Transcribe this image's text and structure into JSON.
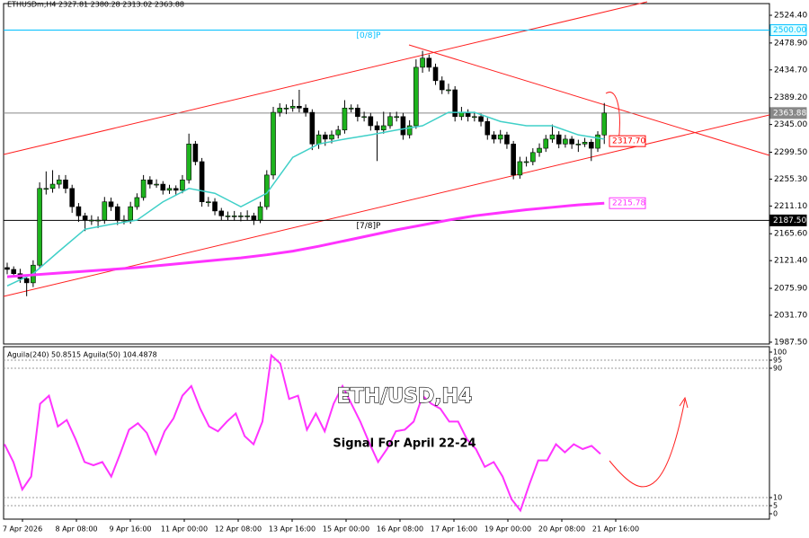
{
  "chart_data": [
    {
      "type": "candlestick",
      "title": "ETHUSDm,H4  2327.81 2380.28 2313.02 2363.88",
      "annotations": [
        "ETH/USD,H4",
        "Signal For April 22-24"
      ],
      "up_color": "#1db31d",
      "down_color": "#000000",
      "ylim": [
        1984.5,
        2543.6
      ],
      "yticks": [
        {
          "value": 2524.4,
          "label": "2524.40"
        },
        {
          "value": 2478.9,
          "label": "2478.90"
        },
        {
          "value": 2434.7,
          "label": "2434.70"
        },
        {
          "value": 2389.2,
          "label": "2389.20"
        },
        {
          "value": 2345,
          "label": "2345.00"
        },
        {
          "value": 2299.5,
          "label": "2299.50"
        },
        {
          "value": 2255.3,
          "label": "2255.30"
        },
        {
          "value": 2211.1,
          "label": "2211.10"
        },
        {
          "value": 2165.6,
          "label": "2165.60"
        },
        {
          "value": 2121.4,
          "label": "2121.40"
        },
        {
          "value": 2075.9,
          "label": "2075.90"
        },
        {
          "value": 2031.7,
          "label": "2031.70"
        },
        {
          "value": 1987.5,
          "label": "1987.50"
        }
      ],
      "x_labels": [
        "7 Apr 2026",
        "8 Apr 08:00",
        "9 Apr 16:00",
        "11 Apr 00:00",
        "12 Apr 08:00",
        "13 Apr 16:00",
        "15 Apr 00:00",
        "16 Apr 08:00",
        "17 Apr 16:00",
        "19 Apr 00:00",
        "20 Apr 08:00",
        "21 Apr 16:00"
      ],
      "candles": [
        [
          2110,
          2118,
          2099,
          2107
        ],
        [
          2107,
          2112,
          2094,
          2100
        ],
        [
          2100,
          2108,
          2085,
          2092
        ],
        [
          2092,
          2098,
          2063,
          2085
        ],
        [
          2085,
          2122,
          2078,
          2114
        ],
        [
          2114,
          2250,
          2108,
          2240
        ],
        [
          2240,
          2268,
          2230,
          2240
        ],
        [
          2240,
          2270,
          2233,
          2247
        ],
        [
          2247,
          2262,
          2240,
          2254
        ],
        [
          2254,
          2262,
          2232,
          2240
        ],
        [
          2240,
          2246,
          2200,
          2210
        ],
        [
          2210,
          2216,
          2185,
          2195
        ],
        [
          2195,
          2200,
          2170,
          2188
        ],
        [
          2188,
          2196,
          2180,
          2188
        ],
        [
          2188,
          2194,
          2175,
          2188
        ],
        [
          2188,
          2226,
          2182,
          2218
        ],
        [
          2218,
          2225,
          2203,
          2210
        ],
        [
          2210,
          2215,
          2180,
          2188
        ],
        [
          2188,
          2196,
          2181,
          2188
        ],
        [
          2188,
          2218,
          2182,
          2210
        ],
        [
          2210,
          2232,
          2205,
          2225
        ],
        [
          2225,
          2262,
          2220,
          2254
        ],
        [
          2254,
          2260,
          2240,
          2247
        ],
        [
          2247,
          2255,
          2241,
          2247
        ],
        [
          2247,
          2252,
          2230,
          2237
        ],
        [
          2237,
          2246,
          2231,
          2240
        ],
        [
          2240,
          2245,
          2230,
          2237
        ],
        [
          2237,
          2262,
          2232,
          2254
        ],
        [
          2254,
          2330,
          2248,
          2313
        ],
        [
          2313,
          2318,
          2278,
          2284
        ],
        [
          2284,
          2290,
          2210,
          2218
        ],
        [
          2218,
          2226,
          2210,
          2218
        ],
        [
          2218,
          2224,
          2196,
          2203
        ],
        [
          2203,
          2208,
          2188,
          2195
        ],
        [
          2195,
          2202,
          2188,
          2195
        ],
        [
          2195,
          2203,
          2187,
          2195
        ],
        [
          2195,
          2201,
          2186,
          2195
        ],
        [
          2195,
          2204,
          2188,
          2195
        ],
        [
          2195,
          2200,
          2180,
          2188
        ],
        [
          2188,
          2218,
          2183,
          2210
        ],
        [
          2210,
          2270,
          2205,
          2262
        ],
        [
          2262,
          2374,
          2255,
          2365
        ],
        [
          2365,
          2380,
          2358,
          2372
        ],
        [
          2372,
          2378,
          2362,
          2372
        ],
        [
          2372,
          2386,
          2366,
          2375
        ],
        [
          2375,
          2402,
          2365,
          2372
        ],
        [
          2372,
          2378,
          2358,
          2365
        ],
        [
          2365,
          2370,
          2303,
          2313
        ],
        [
          2313,
          2335,
          2305,
          2328
        ],
        [
          2328,
          2333,
          2310,
          2321
        ],
        [
          2321,
          2335,
          2314,
          2328
        ],
        [
          2328,
          2343,
          2322,
          2336
        ],
        [
          2336,
          2385,
          2330,
          2372
        ],
        [
          2372,
          2378,
          2365,
          2372
        ],
        [
          2372,
          2378,
          2350,
          2358
        ],
        [
          2358,
          2366,
          2350,
          2358
        ],
        [
          2358,
          2364,
          2335,
          2343
        ],
        [
          2343,
          2350,
          2285,
          2336
        ],
        [
          2336,
          2366,
          2330,
          2343
        ],
        [
          2343,
          2365,
          2338,
          2358
        ],
        [
          2358,
          2366,
          2350,
          2358
        ],
        [
          2358,
          2364,
          2320,
          2328
        ],
        [
          2328,
          2352,
          2322,
          2343
        ],
        [
          2343,
          2452,
          2338,
          2439
        ],
        [
          2439,
          2466,
          2430,
          2454
        ],
        [
          2454,
          2460,
          2432,
          2439
        ],
        [
          2439,
          2445,
          2410,
          2417
        ],
        [
          2417,
          2424,
          2395,
          2402
        ],
        [
          2402,
          2412,
          2395,
          2402
        ],
        [
          2402,
          2408,
          2350,
          2358
        ],
        [
          2358,
          2374,
          2352,
          2365
        ],
        [
          2365,
          2370,
          2350,
          2358
        ],
        [
          2358,
          2366,
          2350,
          2358
        ],
        [
          2358,
          2363,
          2342,
          2350
        ],
        [
          2350,
          2356,
          2320,
          2328
        ],
        [
          2328,
          2334,
          2314,
          2321
        ],
        [
          2321,
          2336,
          2314,
          2328
        ],
        [
          2328,
          2333,
          2305,
          2313
        ],
        [
          2313,
          2318,
          2255,
          2262
        ],
        [
          2262,
          2292,
          2256,
          2284
        ],
        [
          2284,
          2292,
          2276,
          2284
        ],
        [
          2284,
          2306,
          2278,
          2299
        ],
        [
          2299,
          2314,
          2292,
          2306
        ],
        [
          2306,
          2328,
          2300,
          2321
        ],
        [
          2321,
          2345,
          2315,
          2328
        ],
        [
          2328,
          2334,
          2306,
          2313
        ],
        [
          2313,
          2328,
          2307,
          2321
        ],
        [
          2321,
          2326,
          2305,
          2313
        ],
        [
          2313,
          2320,
          2300,
          2313
        ],
        [
          2313,
          2323,
          2308,
          2316
        ],
        [
          2316,
          2321,
          2285,
          2306
        ],
        [
          2306,
          2334,
          2300,
          2328
        ],
        [
          2327.81,
          2380.28,
          2313.02,
          2363.88
        ]
      ],
      "series": [
        {
          "color": "#40d0c8",
          "step": 4,
          "values": [
            2080,
            2100,
            2137,
            2173,
            2181,
            2188,
            2218,
            2240,
            2232,
            2210,
            2232,
            2291,
            2313,
            2321,
            2328,
            2336,
            2343,
            2365,
            2365,
            2350,
            2343,
            2343,
            2328,
            2321
          ]
        },
        {
          "color": "#ff33ff",
          "step": 4,
          "values": [
            2095,
            2098,
            2101,
            2104,
            2107,
            2110,
            2114,
            2118,
            2122,
            2126,
            2131,
            2137,
            2145,
            2154,
            2163,
            2172,
            2180,
            2188,
            2195,
            2200,
            2205,
            2209,
            2213,
            2215.78
          ],
          "value_labels": [
            null,
            null,
            null,
            null,
            null,
            null,
            null,
            null,
            null,
            null,
            null,
            null,
            null,
            null,
            null,
            null,
            null,
            null,
            null,
            null,
            null,
            null,
            null,
            "2215.78"
          ]
        }
      ],
      "levels": [
        {
          "value": 2500,
          "label": "2500.00",
          "text": "[0/8]P",
          "color": "#00bfff",
          "kind": "line"
        },
        {
          "value": 2363.88,
          "label": "2363.88",
          "color": "#888888",
          "kind": "line"
        },
        {
          "value": 2187.5,
          "label": "2187.50",
          "text": "[7/8]P",
          "color": "#000000",
          "kind": "line"
        },
        {
          "value": 2317.7,
          "label": "2317.70",
          "color": "#ff0000",
          "kind": "tag"
        }
      ]
    },
    {
      "type": "line",
      "title": "Aguila(240) 50.8515  Aguila(50) 104.4878",
      "ylim": [
        0,
        100
      ],
      "yticks": [
        100,
        95,
        90,
        10,
        5,
        0
      ],
      "color": "#ff33ff",
      "values": [
        43,
        32,
        15,
        23,
        68,
        73,
        54,
        58,
        46,
        32,
        30,
        32,
        23,
        37,
        52,
        56,
        50,
        37,
        51,
        59,
        73,
        79,
        65,
        54,
        51,
        57,
        62,
        48,
        43,
        57,
        98,
        93,
        71,
        73,
        52,
        62,
        51,
        68,
        79,
        68,
        57,
        44,
        32,
        40,
        51,
        52,
        57,
        73,
        68,
        65,
        57,
        57,
        46,
        40,
        29,
        32,
        23,
        9,
        2,
        18,
        33,
        33,
        43,
        38,
        43,
        40,
        42,
        37
      ]
    }
  ]
}
